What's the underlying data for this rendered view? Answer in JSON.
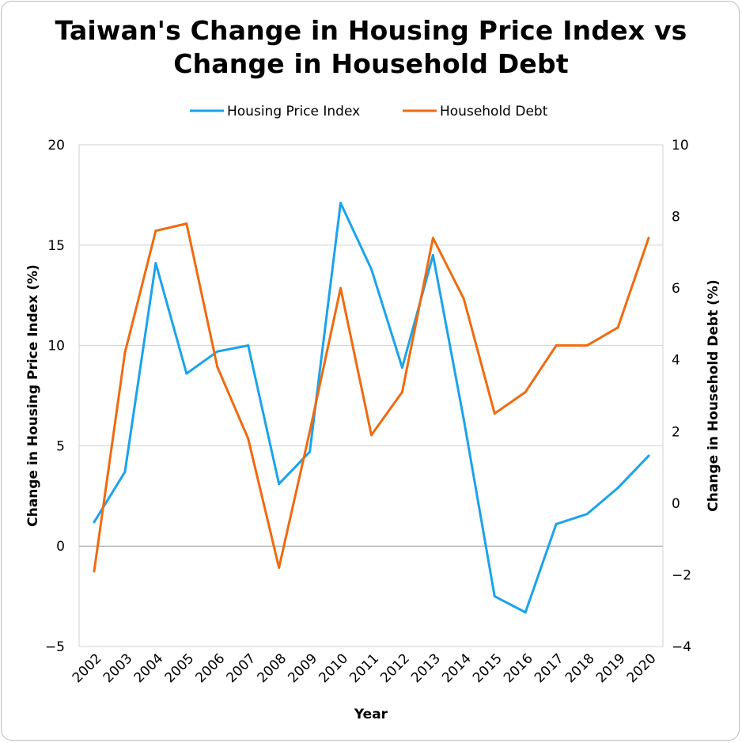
{
  "chart_data": {
    "type": "line",
    "title_line1": "Taiwan's Change in Housing Price Index vs",
    "title_line2": "Change in Household Debt",
    "xlabel": "Year",
    "ylabel_left": "Change in Housing Price Index (%)",
    "ylabel_right": "Change in Household Debt (%)",
    "categories": [
      "2002",
      "2003",
      "2004",
      "2005",
      "2006",
      "2007",
      "2008",
      "2009",
      "2010",
      "2011",
      "2012",
      "2013",
      "2014",
      "2015",
      "2016",
      "2017",
      "2018",
      "2019",
      "2020"
    ],
    "ylim_left": [
      -5,
      20
    ],
    "yticks_left": [
      -5,
      0,
      5,
      10,
      15,
      20
    ],
    "ylim_right": [
      -4,
      10
    ],
    "yticks_right": [
      -4,
      -2,
      0,
      2,
      4,
      6,
      8,
      10
    ],
    "grid": "horizontal",
    "legend_position": "top-center",
    "series": [
      {
        "name": "Housing Price Index",
        "axis": "left",
        "color": "#1aa3ec",
        "values": [
          1.2,
          3.7,
          14.1,
          8.6,
          9.7,
          10.0,
          3.1,
          4.7,
          17.1,
          13.8,
          8.9,
          14.5,
          6.3,
          -2.5,
          -3.3,
          1.1,
          1.6,
          2.9,
          4.5
        ]
      },
      {
        "name": "Household Debt",
        "axis": "right",
        "color": "#f06a0f",
        "values": [
          -1.9,
          4.2,
          7.6,
          7.8,
          3.8,
          1.8,
          -1.8,
          2.0,
          6.0,
          1.9,
          3.1,
          7.4,
          5.7,
          2.5,
          3.1,
          4.4,
          4.4,
          4.9,
          7.4
        ]
      }
    ]
  }
}
